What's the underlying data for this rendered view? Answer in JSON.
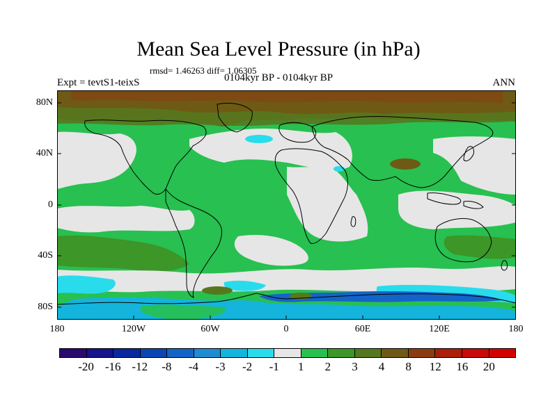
{
  "title": "Mean Sea Level Pressure (in hPa)",
  "stats": "rmsd= 1.46263 diff= 1.06305",
  "expt": "Expt = tevtS1-teixS",
  "period": "0104kyr BP - 0104kyr BP",
  "season": "ANN",
  "lat_labels": [
    "80N",
    "40N",
    "0",
    "40S",
    "80S"
  ],
  "lon_labels": [
    "180",
    "120W",
    "60W",
    "0",
    "60E",
    "120E",
    "180"
  ],
  "colorbar": {
    "labels": [
      "-20",
      "-16",
      "-12",
      "-8",
      "-4",
      "-3",
      "-2",
      "-1",
      "1",
      "2",
      "3",
      "4",
      "8",
      "12",
      "16",
      "20"
    ],
    "colors": [
      "#2a0a6e",
      "#14148c",
      "#0a28a0",
      "#0a46b4",
      "#1464c8",
      "#1e8cd2",
      "#14b4dc",
      "#28dcec",
      "#e6e6e6",
      "#28c050",
      "#3c9628",
      "#55781e",
      "#6e5a14",
      "#8c3c10",
      "#aa1e0a",
      "#c80a0a",
      "#d20000"
    ]
  }
}
